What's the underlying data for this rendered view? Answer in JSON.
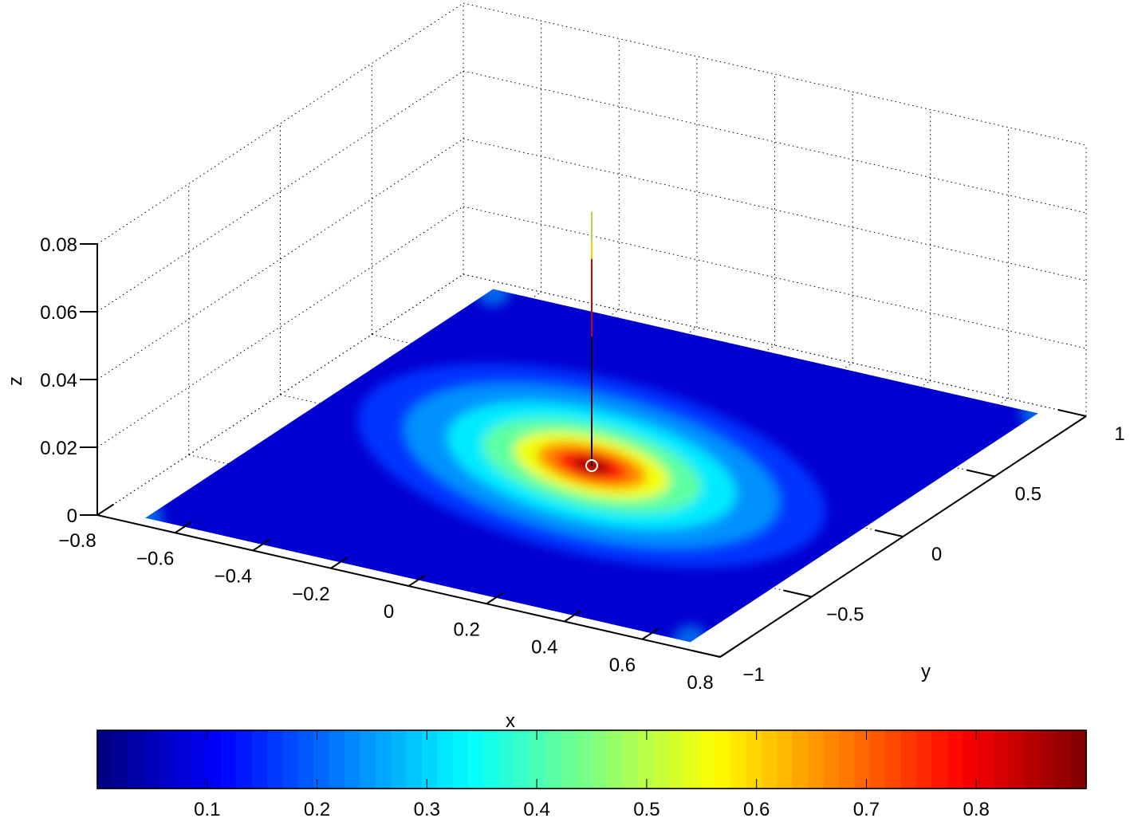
{
  "chart_data": {
    "type": "surface",
    "xlabel": "x",
    "ylabel": "y",
    "zlabel": "z",
    "grid": true,
    "xlim": [
      -0.8,
      0.8
    ],
    "ylim": [
      -1,
      1
    ],
    "zlim": [
      0,
      0.08
    ],
    "x_ticks": [
      "−0.8",
      "−0.6",
      "−0.4",
      "−0.2",
      "0",
      "0.2",
      "0.4",
      "0.6",
      "0.8"
    ],
    "y_ticks": [
      "−1",
      "−0.5",
      "0",
      "0.5",
      "1"
    ],
    "z_ticks": [
      "0",
      "0.02",
      "0.04",
      "0.06",
      "0.08"
    ],
    "surface": {
      "x_range": [
        -0.7,
        0.7
      ],
      "y_range": [
        -0.95,
        0.95
      ],
      "z_level": 0,
      "colormap": "jet",
      "peak_at": [
        0,
        0
      ],
      "peak_color_value": 0.9
    },
    "marker": {
      "x": 0,
      "y": 0,
      "z": 0,
      "symbol": "o",
      "color": "#ffffff"
    },
    "stem": {
      "x": 0,
      "y": 0,
      "segments": [
        {
          "from": 0.0,
          "to": 0.038,
          "color": "#000000"
        },
        {
          "from": 0.038,
          "to": 0.061,
          "color": "#cc0000"
        },
        {
          "from": 0.061,
          "to": 0.066,
          "color": "#ffcc00"
        },
        {
          "from": 0.066,
          "to": 0.075,
          "color": "#b5d64a"
        }
      ]
    },
    "colorbar": {
      "orientation": "horizontal",
      "location": "bottom",
      "range": [
        0,
        0.9
      ],
      "ticks": [
        "0.1",
        "0.2",
        "0.3",
        "0.4",
        "0.5",
        "0.6",
        "0.7",
        "0.8"
      ],
      "tick_values": [
        0.1,
        0.2,
        0.3,
        0.4,
        0.5,
        0.6,
        0.7,
        0.8
      ]
    }
  }
}
